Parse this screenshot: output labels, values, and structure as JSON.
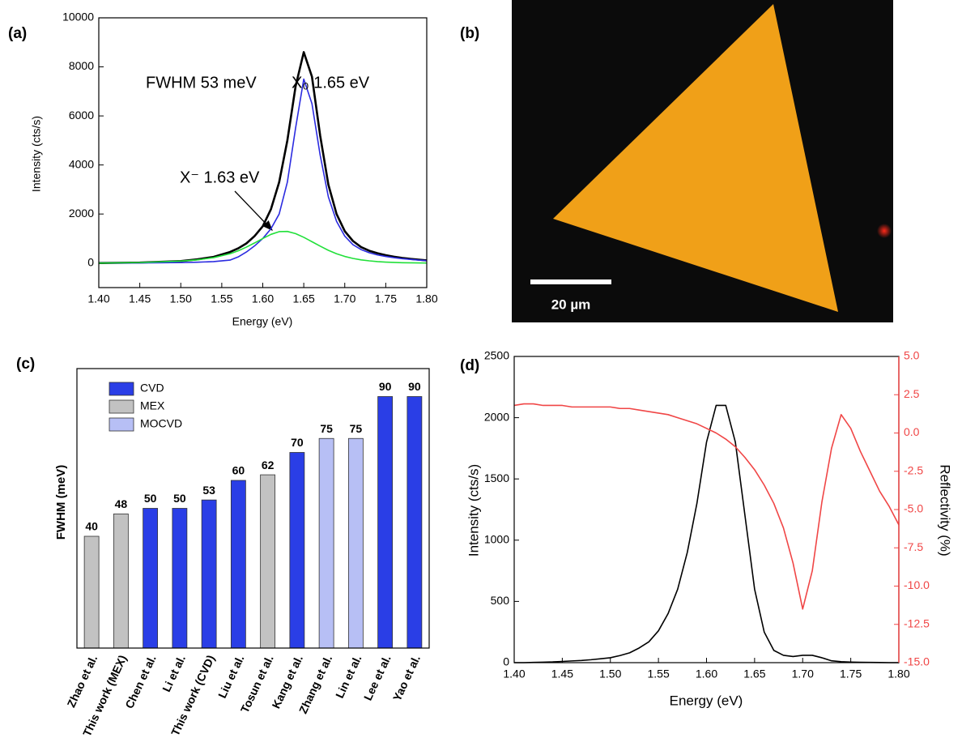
{
  "chart_data": [
    {
      "panel_label": "(a)",
      "type": "line",
      "x_label": "Energy (eV)",
      "y_label": "Intensity (cts/s)",
      "x": [
        1.4,
        1.45,
        1.5,
        1.52,
        1.54,
        1.56,
        1.57,
        1.58,
        1.59,
        1.6,
        1.61,
        1.62,
        1.63,
        1.64,
        1.65,
        1.66,
        1.67,
        1.68,
        1.69,
        1.7,
        1.71,
        1.72,
        1.73,
        1.74,
        1.75,
        1.76,
        1.77,
        1.78,
        1.79,
        1.8
      ],
      "series": [
        {
          "color": "#000000",
          "values": [
            0,
            20,
            80,
            150,
            250,
            450,
            600,
            800,
            1100,
            1500,
            2200,
            3300,
            5000,
            7200,
            8600,
            7600,
            5200,
            3200,
            2000,
            1300,
            900,
            650,
            500,
            400,
            320,
            260,
            210,
            170,
            140,
            110
          ]
        },
        {
          "color": "#2b2be0",
          "values": [
            0,
            5,
            20,
            35,
            60,
            120,
            250,
            450,
            700,
            1000,
            1400,
            2000,
            3300,
            5500,
            7500,
            6500,
            4400,
            2700,
            1700,
            1100,
            750,
            550,
            420,
            330,
            270,
            220,
            180,
            150,
            120,
            100
          ]
        },
        {
          "color": "#22e03a",
          "values": [
            0,
            20,
            80,
            130,
            220,
            380,
            500,
            650,
            820,
            1000,
            1170,
            1280,
            1290,
            1200,
            1050,
            870,
            690,
            520,
            380,
            270,
            190,
            130,
            90,
            60,
            40,
            25,
            15,
            10,
            5,
            0
          ]
        }
      ],
      "xlim": [
        1.4,
        1.8
      ],
      "xticks": [
        {
          "value": 1.4,
          "label": "1.40"
        },
        1.45,
        {
          "value": 1.5,
          "label": "1.50"
        },
        1.55,
        {
          "value": 1.6,
          "label": "1.60"
        },
        1.65,
        {
          "value": 1.7,
          "label": "1.70"
        },
        1.75,
        {
          "value": 1.8,
          "label": "1.80"
        }
      ],
      "ylim": [
        -1000,
        10000
      ],
      "yticks": [
        0,
        2000,
        4000,
        6000,
        8000,
        10000
      ],
      "annotations": [
        "FWHM 53 meV",
        "X₀ 1.65 eV",
        "X⁻ 1.63 eV"
      ]
    },
    {
      "panel_label": "(c)",
      "type": "bar",
      "y_label": "FWHM (meV)",
      "categories": [
        "Zhao et al.",
        "This work (MEX)",
        "Chen et al.",
        "Li et al.",
        "This work (CVD)",
        "Liu et al.",
        "Tosun et al.",
        "Kang et al.",
        "Zhang et al.",
        "Lin et al.",
        "Lee et al.",
        "Yao et al."
      ],
      "series": [
        {
          "name": "CVD",
          "color": "#2a3ee6",
          "values": [
            null,
            null,
            50,
            50,
            53,
            60,
            null,
            70,
            null,
            null,
            90,
            90
          ]
        },
        {
          "name": "MEX",
          "color": "#c2c2c2",
          "values": [
            40,
            48,
            null,
            null,
            null,
            null,
            62,
            null,
            null,
            null,
            null,
            null
          ]
        },
        {
          "name": "MOCVD",
          "color": "#b7bff5",
          "values": [
            null,
            null,
            null,
            null,
            null,
            null,
            null,
            null,
            75,
            75,
            null,
            null
          ]
        }
      ],
      "ylim": [
        0,
        100
      ]
    },
    {
      "panel_label": "(d)",
      "type": "line",
      "x_label": "Energy (eV)",
      "y_label": "Intensity (cts/s)",
      "y2_label": "Reflectivity (%)",
      "x": [
        1.4,
        1.41,
        1.42,
        1.43,
        1.44,
        1.45,
        1.46,
        1.47,
        1.48,
        1.49,
        1.5,
        1.51,
        1.52,
        1.53,
        1.54,
        1.55,
        1.56,
        1.57,
        1.58,
        1.59,
        1.6,
        1.61,
        1.62,
        1.63,
        1.64,
        1.65,
        1.66,
        1.67,
        1.68,
        1.69,
        1.7,
        1.71,
        1.72,
        1.73,
        1.74,
        1.75,
        1.76,
        1.77,
        1.78,
        1.79,
        1.8
      ],
      "series": [
        {
          "color": "#000000",
          "values": [
            0,
            0,
            2,
            4,
            6,
            10,
            14,
            18,
            24,
            32,
            40,
            58,
            80,
            120,
            170,
            260,
            400,
            600,
            900,
            1300,
            1800,
            2100,
            2100,
            1800,
            1200,
            600,
            250,
            100,
            60,
            50,
            60,
            60,
            40,
            15,
            8,
            5,
            3,
            2,
            1,
            0,
            0
          ]
        },
        {
          "color": "#f04646",
          "axis": "y2",
          "values": [
            1.8,
            1.9,
            1.9,
            1.8,
            1.8,
            1.8,
            1.7,
            1.7,
            1.7,
            1.7,
            1.7,
            1.6,
            1.6,
            1.5,
            1.4,
            1.3,
            1.2,
            1.0,
            0.8,
            0.6,
            0.3,
            0.0,
            -0.4,
            -0.9,
            -1.6,
            -2.4,
            -3.4,
            -4.6,
            -6.2,
            -8.5,
            -11.5,
            -9.0,
            -4.5,
            -1.0,
            1.2,
            0.3,
            -1.2,
            -2.5,
            -3.8,
            -4.8,
            -6.0
          ]
        }
      ],
      "xlim": [
        1.4,
        1.8
      ],
      "xticks": [
        {
          "value": 1.4,
          "label": "1.40"
        },
        1.45,
        {
          "value": 1.5,
          "label": "1.50"
        },
        1.55,
        {
          "value": 1.6,
          "label": "1.60"
        },
        1.65,
        {
          "value": 1.7,
          "label": "1.70"
        },
        1.75,
        {
          "value": 1.8,
          "label": "1.80"
        }
      ],
      "ylim": [
        0,
        2500
      ],
      "yticks": [
        0,
        500,
        1000,
        1500,
        2000,
        2500
      ],
      "y2lim": [
        -15,
        5
      ],
      "y2ticks": [
        {
          "value": -15,
          "label": "-15.0"
        },
        -12.5,
        {
          "value": -10,
          "label": "-10.0"
        },
        -7.5,
        {
          "value": -5,
          "label": "-5.0"
        },
        -2.5,
        {
          "value": 0,
          "label": "0.0"
        },
        2.5,
        {
          "value": 5,
          "label": "5.0"
        }
      ],
      "y2color": "#f04646"
    }
  ],
  "image": {
    "panel_label": "(b)",
    "scale_bar_label": "20 µm"
  }
}
